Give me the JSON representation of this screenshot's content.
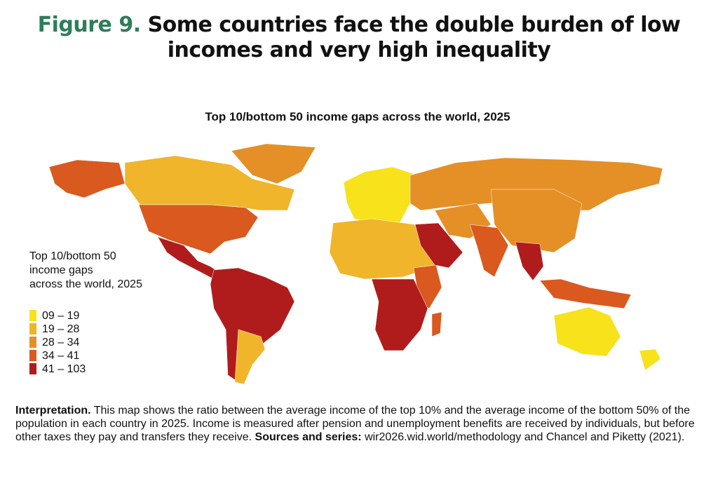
{
  "figure": {
    "label": "Figure 9.",
    "title": "Some countries face the double burden of low incomes and very high inequality"
  },
  "map": {
    "title": "Top 10/bottom 50 income gaps across the world, 2025",
    "legend": {
      "title_lines": [
        "Top 10/bottom 50",
        "income gaps",
        "across the world, 2025"
      ],
      "items": [
        {
          "label": "09 – 19",
          "color": "#f7e21c"
        },
        {
          "label": "19 – 28",
          "color": "#f0b52a"
        },
        {
          "label": "28 – 34",
          "color": "#e58f27"
        },
        {
          "label": "34 – 41",
          "color": "#d9591f"
        },
        {
          "label": "41 – 103",
          "color": "#b01c1c"
        }
      ]
    }
  },
  "note": {
    "lead": "Interpretation.",
    "text": "This map shows the ratio between the average income of the top 10% and the average income of the bottom 50% of the population in each country in 2025. Income is measured after pension and unemployment benefits are received by individuals, but before other taxes they pay and transfers they receive.",
    "sources_lead": "Sources and series:",
    "sources_text": "wir2026.wid.world/methodology and Chancel and Piketty (2021)."
  }
}
